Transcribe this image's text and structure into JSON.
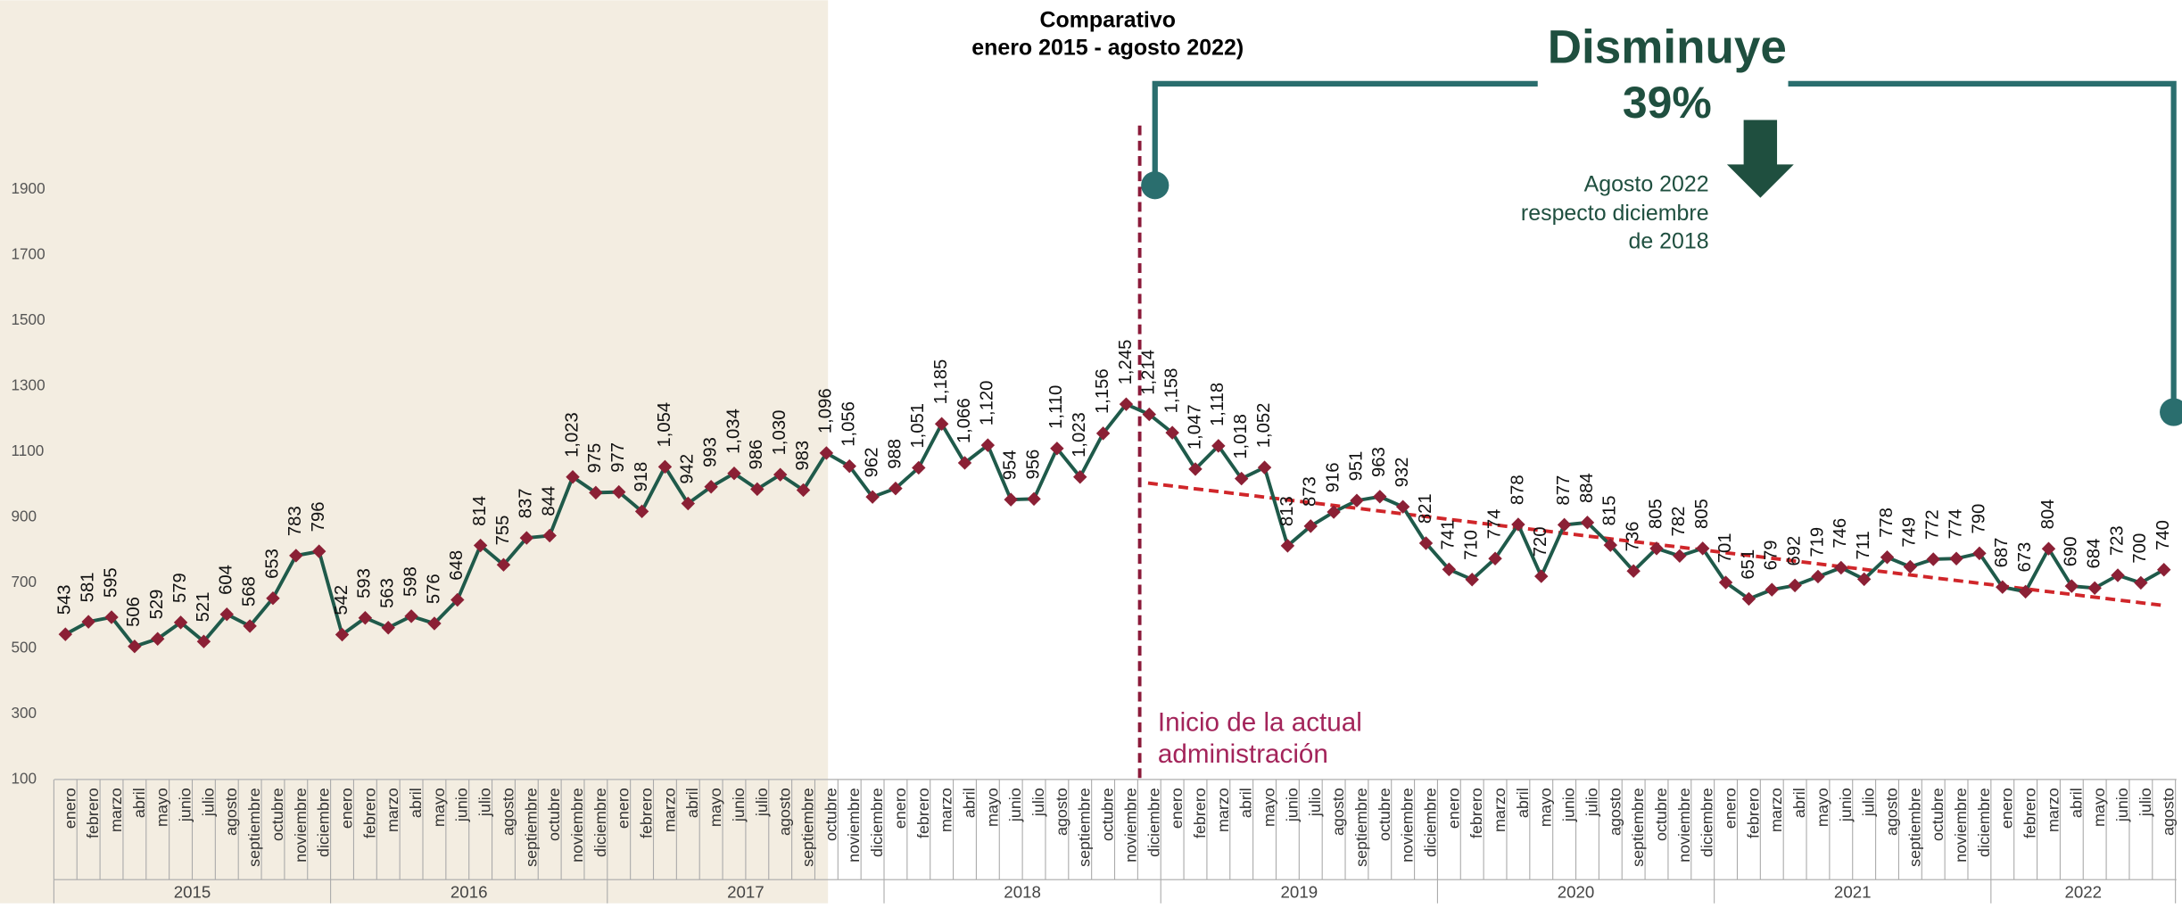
{
  "chart_data": {
    "type": "line",
    "title": "Comparativo",
    "subtitle": "enero 2015 - agosto 2022)",
    "headline": "Disminuye",
    "headline_value": "39%",
    "note": [
      "Agosto 2022",
      "respecto diciembre",
      "de 2018"
    ],
    "annotation": [
      "Inicio de la actual",
      "administración"
    ],
    "categories": [
      "enero",
      "febrero",
      "marzo",
      "abril",
      "mayo",
      "junio",
      "julio",
      "agosto",
      "septiembre",
      "octubre",
      "noviembre",
      "diciembre",
      "enero",
      "febrero",
      "marzo",
      "abril",
      "mayo",
      "junio",
      "julio",
      "agosto",
      "septiembre",
      "octubre",
      "noviembre",
      "diciembre",
      "enero",
      "febrero",
      "marzo",
      "abril",
      "mayo",
      "junio",
      "julio",
      "agosto",
      "septiembre",
      "octubre",
      "noviembre",
      "diciembre",
      "enero",
      "febrero",
      "marzo",
      "abril",
      "mayo",
      "junio",
      "julio",
      "agosto",
      "septiembre",
      "octubre",
      "noviembre",
      "diciembre",
      "enero",
      "febrero",
      "marzo",
      "abril",
      "mayo",
      "junio",
      "julio",
      "agosto",
      "septiembre",
      "octubre",
      "noviembre",
      "diciembre",
      "enero",
      "febrero",
      "marzo",
      "abril",
      "mayo",
      "junio",
      "julio",
      "agosto",
      "septiembre",
      "octubre",
      "noviembre",
      "diciembre",
      "enero",
      "febrero",
      "marzo",
      "abril",
      "mayo",
      "junio",
      "julio",
      "agosto",
      "septiembre",
      "octubre",
      "noviembre",
      "diciembre",
      "enero",
      "febrero",
      "marzo",
      "abril",
      "mayo",
      "junio",
      "julio",
      "agosto"
    ],
    "years": [
      "2015",
      "2016",
      "2017",
      "2018",
      "2019",
      "2020",
      "2021",
      "2022"
    ],
    "values": [
      543,
      581,
      595,
      506,
      529,
      579,
      521,
      604,
      568,
      653,
      783,
      796,
      542,
      593,
      563,
      598,
      576,
      648,
      814,
      755,
      837,
      844,
      1023,
      975,
      977,
      918,
      1054,
      942,
      993,
      1034,
      986,
      1030,
      983,
      1096,
      1056,
      962,
      988,
      1051,
      1185,
      1066,
      1120,
      954,
      956,
      1110,
      1023,
      1156,
      1245,
      1214,
      1158,
      1047,
      1118,
      1018,
      1052,
      813,
      873,
      916,
      951,
      963,
      932,
      821,
      741,
      710,
      774,
      878,
      720,
      877,
      884,
      815,
      736,
      805,
      782,
      805,
      701,
      651,
      679,
      692,
      719,
      746,
      711,
      778,
      749,
      772,
      774,
      790,
      687,
      673,
      804,
      690,
      684,
      723,
      700,
      740
    ],
    "value_labels": [
      "543",
      "581",
      "595",
      "506",
      "529",
      "579",
      "521",
      "604",
      "568",
      "653",
      "783",
      "796",
      "542",
      "593",
      "563",
      "598",
      "576",
      "648",
      "814",
      "755",
      "837",
      "844",
      "1,023",
      "975",
      "977",
      "918",
      "1,054",
      "942",
      "993",
      "1,034",
      "986",
      "1,030",
      "983",
      "1,096",
      "1,056",
      "962",
      "988",
      "1,051",
      "1,185",
      "1,066",
      "1,120",
      "954",
      "956",
      "1,110",
      "1,023",
      "1,156",
      "1,245",
      "1,214",
      "1,158",
      "1,047",
      "1,118",
      "1,018",
      "1,052",
      "813",
      "873",
      "916",
      "951",
      "963",
      "932",
      "821",
      "741",
      "710",
      "774",
      "878",
      "720",
      "877",
      "884",
      "815",
      "736",
      "805",
      "782",
      "805",
      "701",
      "651",
      "679",
      "692",
      "719",
      "746",
      "711",
      "778",
      "749",
      "772",
      "774",
      "790",
      "687",
      "673",
      "804",
      "690",
      "684",
      "723",
      "700",
      "740"
    ],
    "color": "#1f5a4a",
    "marker_color": "#8b2035",
    "ylim": [
      100,
      2000
    ],
    "yticks": [
      100,
      300,
      500,
      700,
      900,
      1100,
      1300,
      1500,
      1700,
      1900
    ],
    "grid": false
  }
}
